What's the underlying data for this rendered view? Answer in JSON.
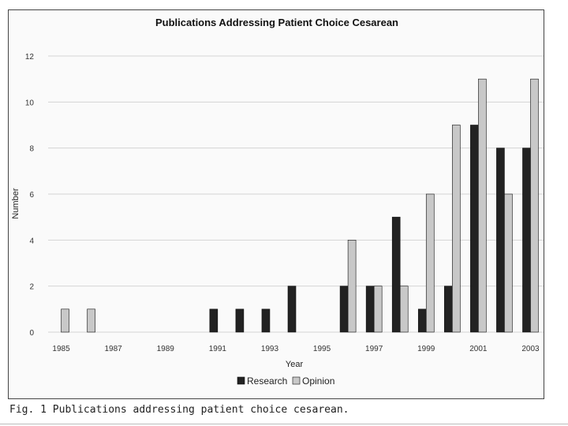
{
  "caption": "Fig. 1 Publications addressing patient choice cesarean.",
  "chart_data": {
    "type": "bar",
    "title": "Publications Addressing Patient Choice Cesarean",
    "xlabel": "Year",
    "ylabel": "Number",
    "ylim": [
      0,
      12
    ],
    "yticks": [
      0,
      2,
      4,
      6,
      8,
      10,
      12
    ],
    "grid": true,
    "legend_position": "bottom",
    "categories": [
      "1985",
      "1986",
      "1987",
      "1988",
      "1989",
      "1990",
      "1991",
      "1992",
      "1993",
      "1994",
      "1995",
      "1996",
      "1997",
      "1998",
      "1999",
      "2000",
      "2001",
      "2002",
      "2003"
    ],
    "xtick_labels": [
      "1985",
      "1987",
      "1989",
      "1991",
      "1993",
      "1995",
      "1997",
      "1999",
      "2001",
      "2003"
    ],
    "series": [
      {
        "name": "Research",
        "color": "#222222",
        "values": [
          0,
          0,
          0,
          0,
          0,
          0,
          1,
          1,
          1,
          2,
          0,
          2,
          2,
          5,
          1,
          2,
          9,
          8,
          8
        ]
      },
      {
        "name": "Opinion",
        "color": "#c8c8c8",
        "values": [
          1,
          1,
          0,
          0,
          0,
          0,
          0,
          0,
          0,
          0,
          0,
          4,
          2,
          2,
          6,
          9,
          11,
          6,
          11
        ]
      }
    ]
  }
}
